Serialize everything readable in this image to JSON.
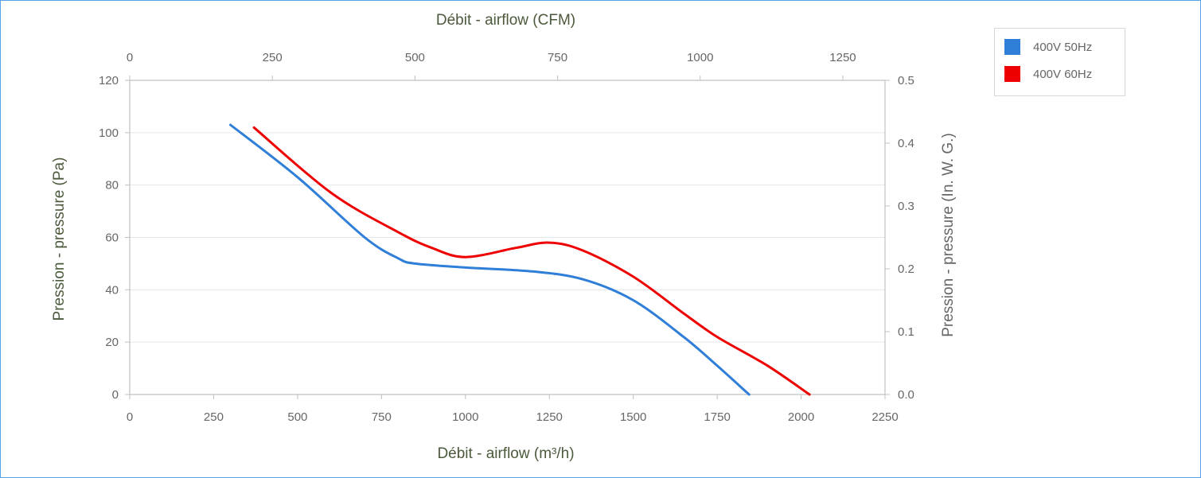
{
  "chart_data": {
    "type": "line",
    "x_bottom": {
      "label": "Débit - airflow (m³/h)",
      "min": 0,
      "max": 2250,
      "ticks": [
        "0",
        "250",
        "500",
        "750",
        "1000",
        "1250",
        "1500",
        "1750",
        "2000",
        "2250"
      ]
    },
    "x_top": {
      "label": "Débit - airflow (CFM)",
      "min": 0,
      "max": 1324,
      "ticks": [
        "0",
        "250",
        "500",
        "750",
        "1000",
        "1250"
      ]
    },
    "y_left": {
      "label": "Pression - pressure (Pa)",
      "min": 0,
      "max": 120,
      "ticks": [
        "0",
        "20",
        "40",
        "60",
        "80",
        "100",
        "120"
      ]
    },
    "y_right": {
      "label": "Pression - pressure (In. W. G.)",
      "min": 0,
      "max": 0.5,
      "ticks": [
        "0.0",
        "0.1",
        "0.2",
        "0.3",
        "0.4",
        "0.5"
      ]
    },
    "grid": true,
    "legend_position": "top-right",
    "series": [
      {
        "name": "400V 50Hz",
        "color": "#2f7ed8",
        "x": [
          300,
          500,
          700,
          800,
          850,
          1000,
          1200,
          1350,
          1500,
          1650,
          1750,
          1845
        ],
        "y": [
          103,
          83,
          60,
          52,
          50,
          48.5,
          47,
          44,
          36,
          22,
          11,
          0
        ]
      },
      {
        "name": "400V 60Hz",
        "color": "#ee0000",
        "x": [
          370,
          600,
          800,
          900,
          1000,
          1150,
          1250,
          1350,
          1500,
          1650,
          1750,
          1900,
          2025
        ],
        "y": [
          102,
          77,
          62,
          56,
          52.5,
          56,
          58,
          55,
          45,
          31,
          22,
          11,
          0
        ]
      }
    ]
  }
}
